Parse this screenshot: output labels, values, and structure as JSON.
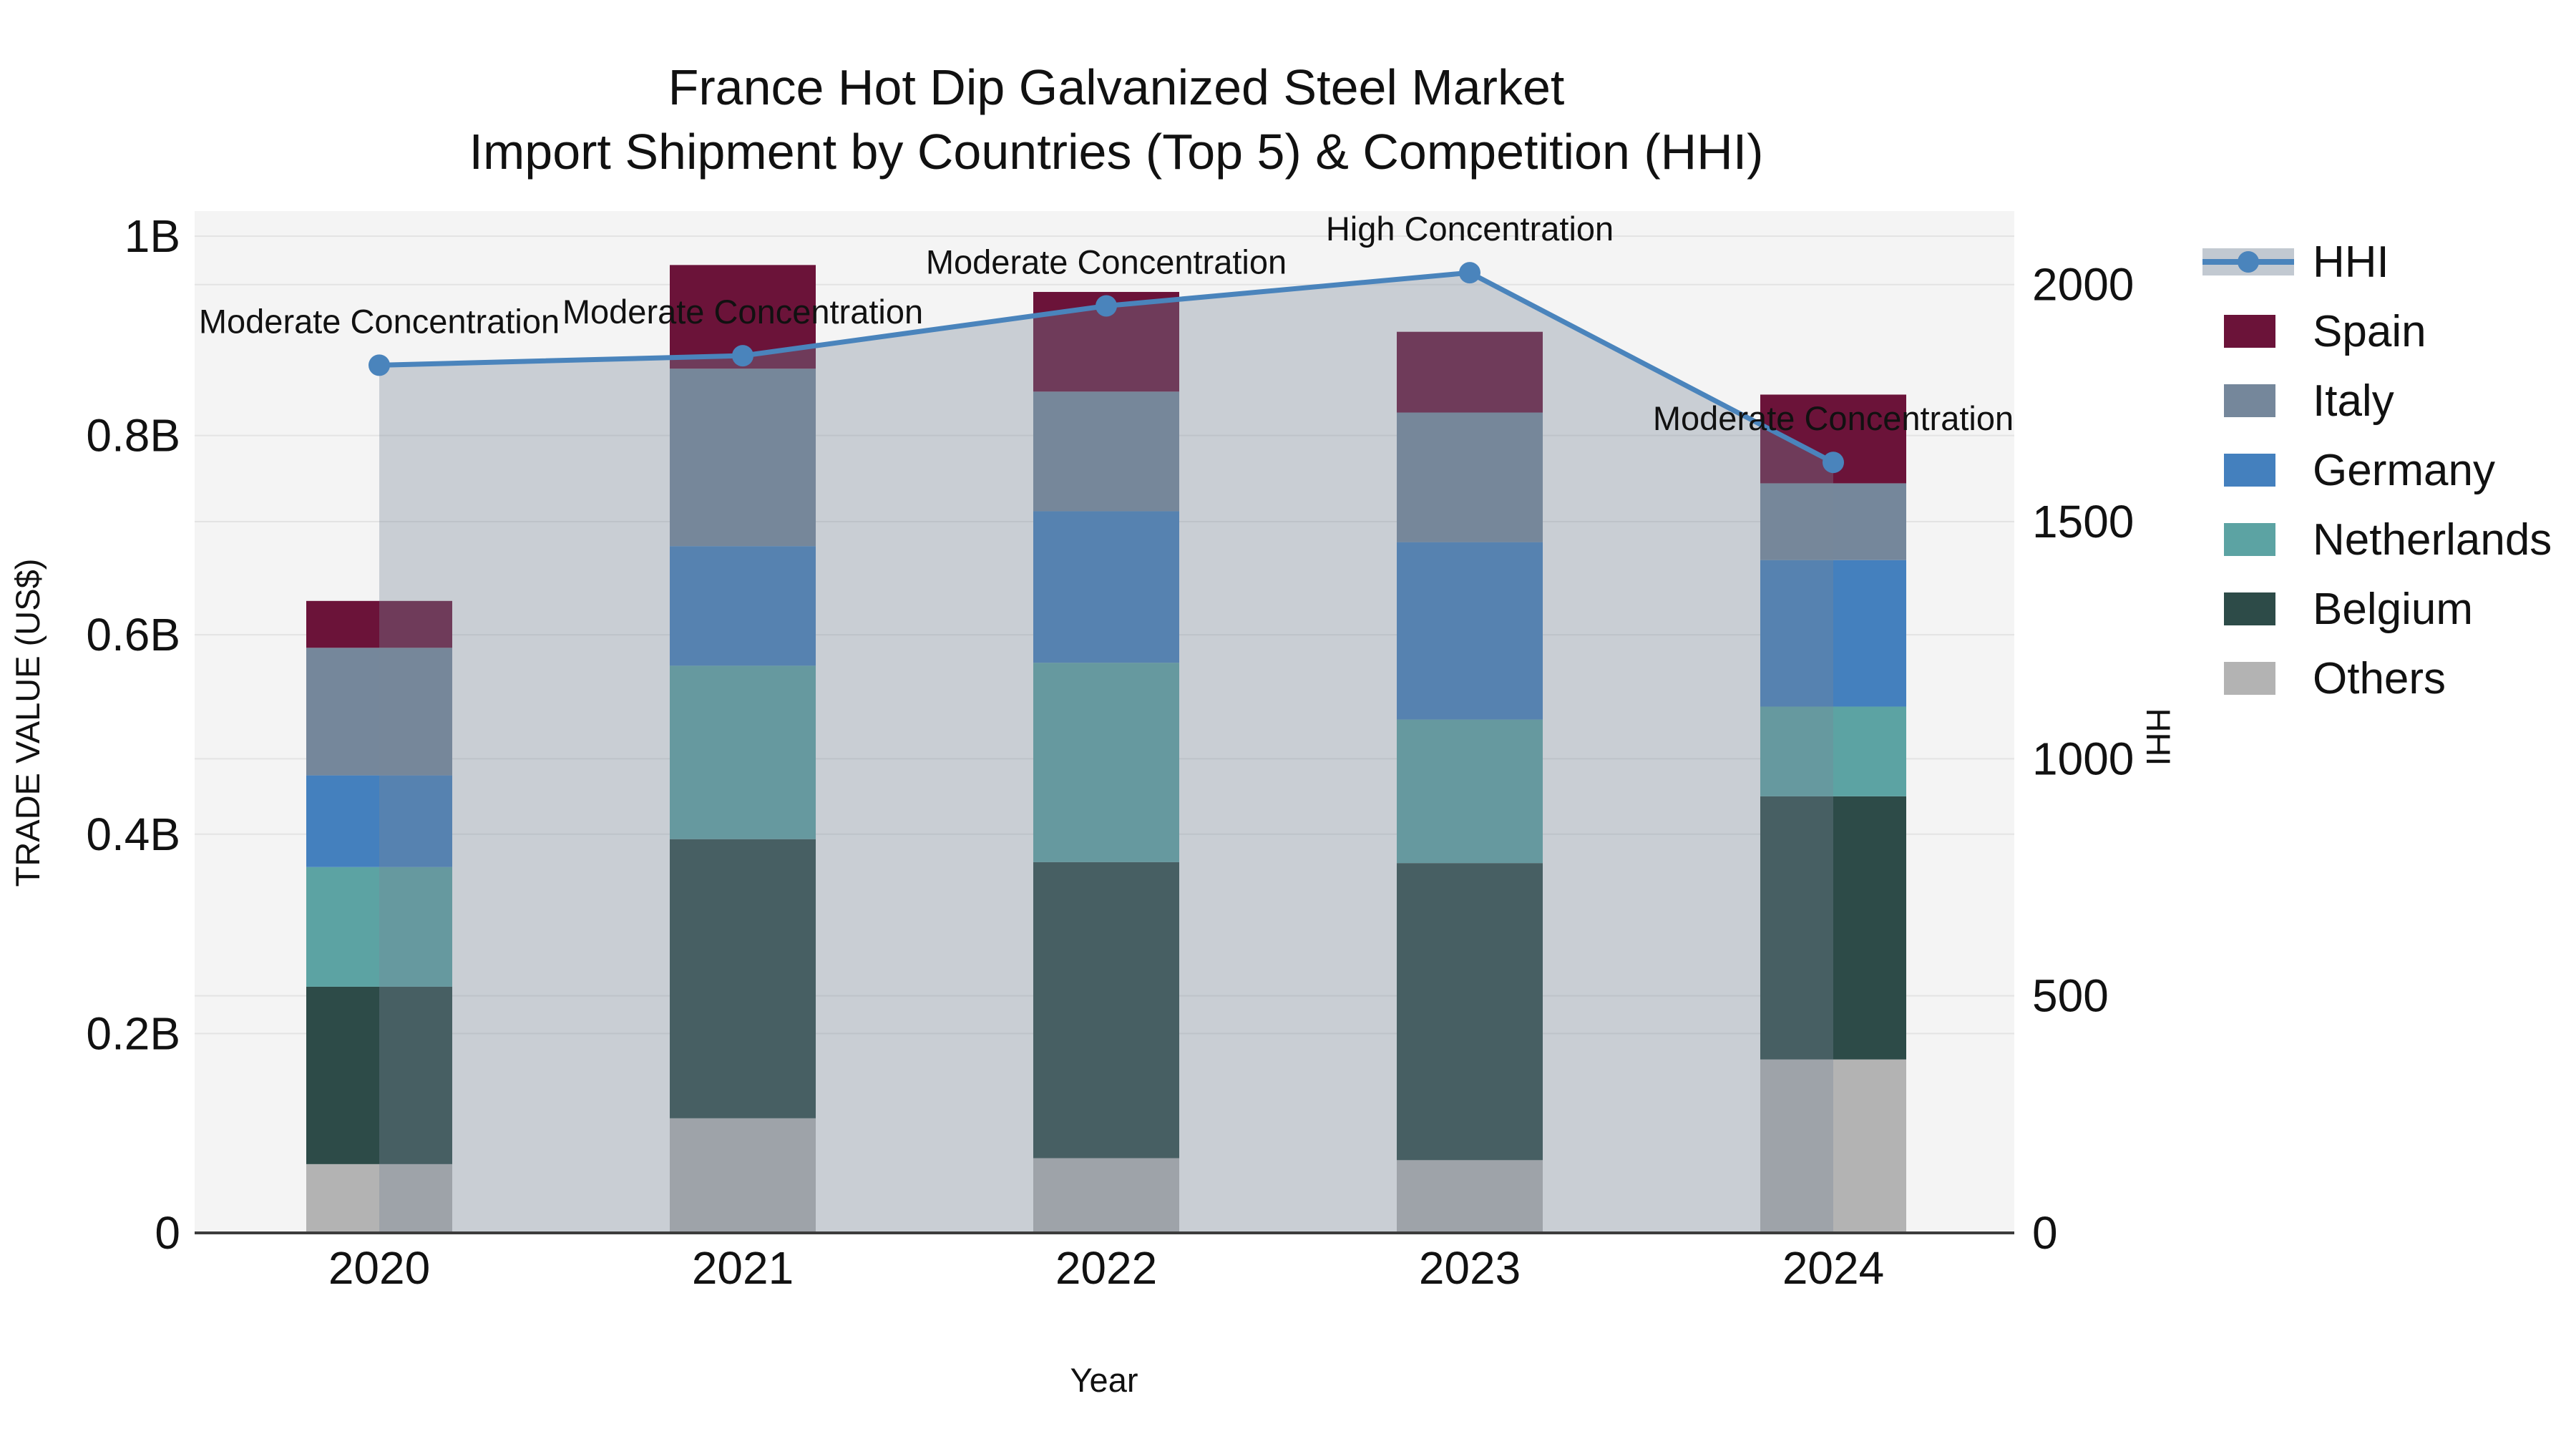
{
  "title": {
    "line1": "France Hot Dip Galvanized Steel Market",
    "line2": "Import Shipment by Countries (Top 5) & Competition (HHI)"
  },
  "chart_data": {
    "type": "bar+line",
    "orientation": "vertical stacked bars with secondary-axis line",
    "categories": [
      "2020",
      "2021",
      "2022",
      "2023",
      "2024"
    ],
    "unit": "billion US$",
    "series": [
      {
        "name": "Others",
        "color": "#B3B3B3",
        "values": [
          0.069,
          0.115,
          0.075,
          0.073,
          0.174
        ]
      },
      {
        "name": "Belgium",
        "color": "#2D4B48",
        "values": [
          0.178,
          0.28,
          0.297,
          0.298,
          0.264
        ]
      },
      {
        "name": "Netherlands",
        "color": "#5CA3A3",
        "values": [
          0.12,
          0.174,
          0.2,
          0.144,
          0.09
        ]
      },
      {
        "name": "Germany",
        "color": "#4480BE",
        "values": [
          0.092,
          0.12,
          0.152,
          0.178,
          0.147
        ]
      },
      {
        "name": "Italy",
        "color": "#75879B",
        "values": [
          0.128,
          0.178,
          0.12,
          0.13,
          0.077
        ]
      },
      {
        "name": "Spain",
        "color": "#6B1339",
        "values": [
          0.047,
          0.104,
          0.1,
          0.081,
          0.089
        ]
      }
    ],
    "bar_totals_billion": [
      0.634,
      0.971,
      0.944,
      0.904,
      0.841
    ],
    "line": {
      "name": "HHI",
      "axis": "right",
      "color": "#4A84BC",
      "values": [
        1830,
        1850,
        1955,
        2025,
        1625
      ],
      "area_fill": "#778899",
      "area_opacity": 0.35
    },
    "annotations": [
      {
        "category": "2020",
        "text": "Moderate Concentration"
      },
      {
        "category": "2021",
        "text": "Moderate Concentration"
      },
      {
        "category": "2022",
        "text": "Moderate Concentration"
      },
      {
        "category": "2023",
        "text": "High Concentration"
      },
      {
        "category": "2024",
        "text": "Moderate Concentration"
      }
    ],
    "axes": {
      "x": {
        "title": "Year"
      },
      "left": {
        "title": "TRADE VALUE (US$)",
        "range": [
          0,
          1.0251
        ],
        "ticks": [
          {
            "v": 0,
            "label": "0"
          },
          {
            "v": 0.2,
            "label": "0.2B"
          },
          {
            "v": 0.4,
            "label": "0.4B"
          },
          {
            "v": 0.6,
            "label": "0.6B"
          },
          {
            "v": 0.8,
            "label": "0.8B"
          },
          {
            "v": 1,
            "label": "1B"
          }
        ]
      },
      "right": {
        "title": "HHI",
        "range": [
          0,
          2155
        ],
        "ticks": [
          {
            "v": 0,
            "label": "0"
          },
          {
            "v": 500,
            "label": "500"
          },
          {
            "v": 1000,
            "label": "1000"
          },
          {
            "v": 1500,
            "label": "1500"
          },
          {
            "v": 2000,
            "label": "2000"
          }
        ]
      }
    },
    "legend": [
      {
        "label": "HHI",
        "type": "line"
      },
      {
        "label": "Spain",
        "type": "swatch",
        "color": "#6B1339"
      },
      {
        "label": "Italy",
        "type": "swatch",
        "color": "#75879B"
      },
      {
        "label": "Germany",
        "type": "swatch",
        "color": "#4480BE"
      },
      {
        "label": "Netherlands",
        "type": "swatch",
        "color": "#5CA3A3"
      },
      {
        "label": "Belgium",
        "type": "swatch",
        "color": "#2D4B48"
      },
      {
        "label": "Others",
        "type": "swatch",
        "color": "#B3B3B3"
      }
    ],
    "background": {
      "figure": "#FFFFFF",
      "plot": "#F4F4F4",
      "grid": "#E3E3E3",
      "axis_line": "#3C3C3C"
    },
    "grid_on": true,
    "legend_position": "right"
  }
}
